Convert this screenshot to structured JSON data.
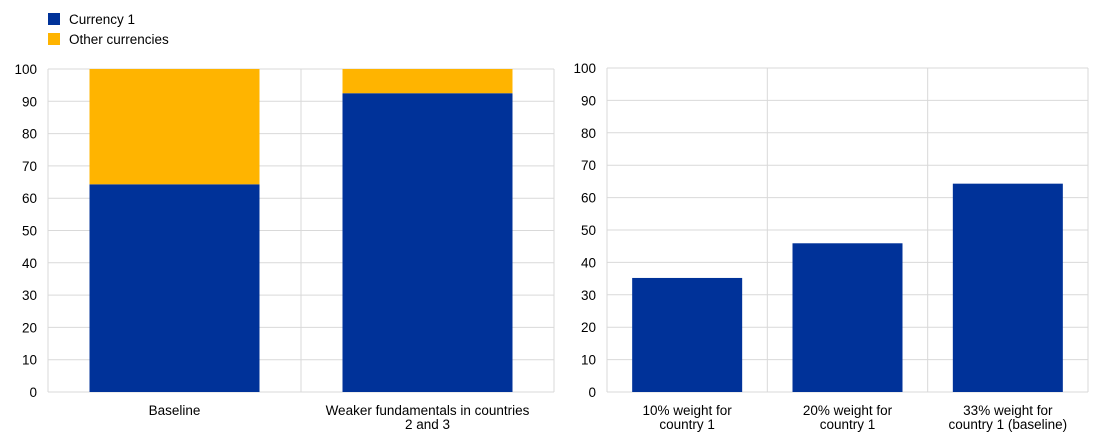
{
  "legend": {
    "items": [
      {
        "label": "Currency 1",
        "color": "#003299"
      },
      {
        "label": "Other currencies",
        "color": "#FFB400"
      }
    ]
  },
  "chart_data": [
    {
      "type": "bar",
      "stacked": true,
      "categories": [
        [
          "Baseline"
        ],
        [
          "Weaker fundamentals in countries",
          "2 and 3"
        ]
      ],
      "series": [
        {
          "name": "Currency 1",
          "color": "#003299",
          "values": [
            64.3,
            92.5
          ]
        },
        {
          "name": "Other currencies",
          "color": "#FFB400",
          "values": [
            35.7,
            7.5
          ]
        }
      ],
      "ylim": [
        0,
        100
      ],
      "yticks": [
        0,
        10,
        20,
        30,
        40,
        50,
        60,
        70,
        80,
        90,
        100
      ],
      "grid": true,
      "legend_position": "top-left"
    },
    {
      "type": "bar",
      "categories": [
        [
          "10% weight for",
          "country 1"
        ],
        [
          "20% weight for",
          "country 1"
        ],
        [
          "33% weight for",
          "country 1 (baseline)"
        ]
      ],
      "series": [
        {
          "color": "#003299",
          "values": [
            35.2,
            45.9,
            64.3
          ]
        }
      ],
      "ylim": [
        0,
        100
      ],
      "yticks": [
        0,
        10,
        20,
        30,
        40,
        50,
        60,
        70,
        80,
        90,
        100
      ],
      "grid": true
    }
  ]
}
